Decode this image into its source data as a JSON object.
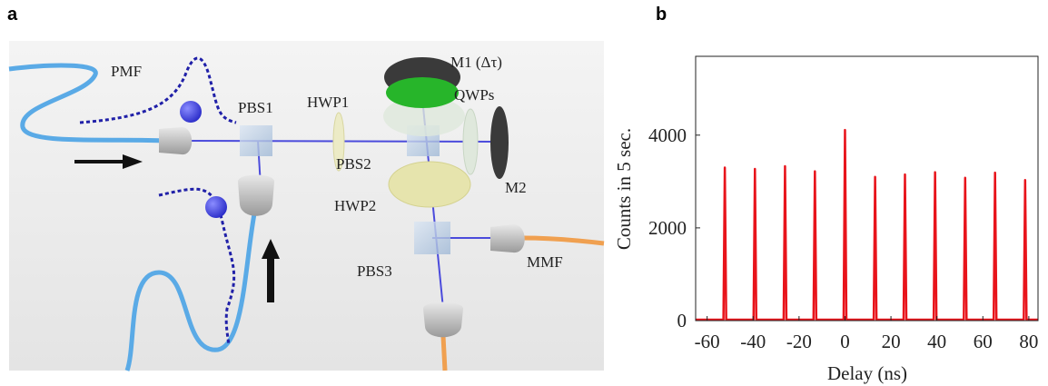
{
  "panel_labels": [
    "a",
    "b"
  ],
  "diagram": {
    "labels": [
      "PMF",
      "PBS1",
      "HWP1",
      "M1 (Δτ)",
      "QWPs",
      "PBS2",
      "M2",
      "HWP2",
      "PBS3",
      "MMF"
    ]
  },
  "chart_data": {
    "type": "line",
    "xlabel": "Delay (ns)",
    "ylabel": "Counts in 5 sec.",
    "x": [
      -65,
      -52.9,
      -52.3,
      -51.7,
      -39.8,
      -39.2,
      -38.6,
      -26.7,
      -26.1,
      -25.5,
      -13.7,
      -13.1,
      -12.5,
      -0.6,
      0,
      0.6,
      12.5,
      13.1,
      13.7,
      25.5,
      26.1,
      26.7,
      38.6,
      39.2,
      39.8,
      51.7,
      52.3,
      52.9,
      64.7,
      65.3,
      65.9,
      77.8,
      78.4,
      79.0,
      84
    ],
    "series": [
      {
        "color": "#e8141b",
        "values": [
          20,
          20,
          3300,
          20,
          20,
          3270,
          20,
          20,
          3330,
          20,
          20,
          3220,
          20,
          20,
          4110,
          20,
          20,
          3100,
          20,
          20,
          3150,
          20,
          20,
          3200,
          20,
          20,
          3080,
          20,
          20,
          3190,
          20,
          20,
          3030,
          20,
          20
        ]
      }
    ],
    "xlim": [
      -65,
      84
    ],
    "xticks": [
      -60,
      -40,
      -20,
      0,
      20,
      40,
      60,
      80
    ],
    "ylim": [
      0,
      5700
    ],
    "yticks": [
      0,
      2000,
      4000
    ]
  }
}
